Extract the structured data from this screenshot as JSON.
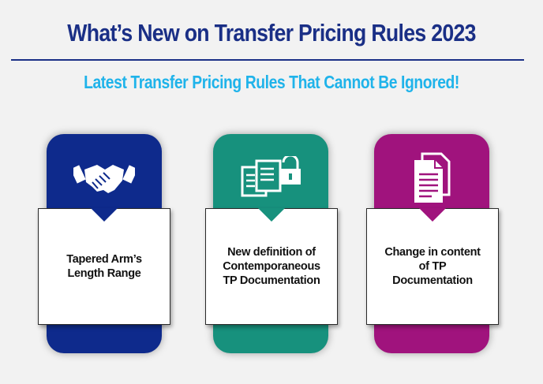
{
  "header": {
    "title": "What’s New  on Transfer Pricing Rules 2023",
    "subtitle": "Latest Transfer Pricing Rules That Cannot Be Ignored!"
  },
  "cards": [
    {
      "label": "Tapered Arm’s\nLength Range",
      "icon": "handshake-icon",
      "color": "#0e2a8c"
    },
    {
      "label": "New definition of\nContemporaneous\nTP Documentation",
      "icon": "documents-lock-icon",
      "color": "#17917d"
    },
    {
      "label": "Change in content\nof TP\nDocumentation",
      "icon": "document-pages-icon",
      "color": "#a0137d"
    }
  ],
  "colors": {
    "title": "#1a2f86",
    "subtitle": "#1fb3ea",
    "background": "#f2f2f2"
  }
}
